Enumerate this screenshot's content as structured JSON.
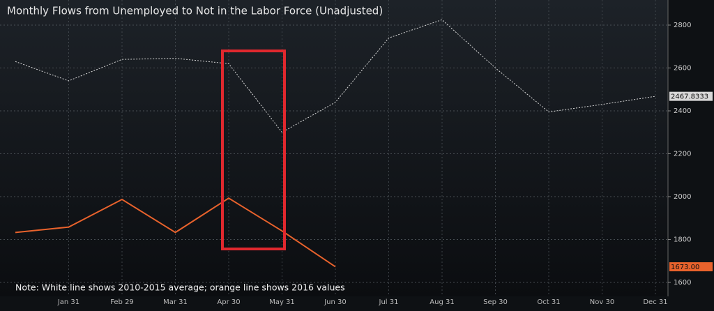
{
  "chart_data": {
    "type": "line",
    "title": "Monthly Flows from Unemployed to Not in the Labor Force (Unadjusted)",
    "annotation": "Note: White line shows 2010-2015 average; orange line shows 2016 values",
    "categories": [
      null,
      "Jan 31",
      "Feb 29",
      "Mar 31",
      "Apr 30",
      "May 31",
      "Jun 30",
      "Jul 31",
      "Aug 31",
      "Sep 30",
      "Oct 31",
      "Nov 30",
      "Dec 31"
    ],
    "series": [
      {
        "color": "#d8d8d8",
        "dashed": true,
        "values": [
          2630,
          2540,
          2640,
          2645,
          2620,
          2300,
          2440,
          2740,
          2825,
          2600,
          2395,
          2430,
          2467.8333
        ],
        "value_labels": [
          null,
          null,
          null,
          null,
          null,
          null,
          null,
          null,
          null,
          null,
          null,
          null,
          "2467.8333"
        ]
      },
      {
        "color": "#e8622c",
        "dashed": false,
        "values": [
          1833,
          1858,
          1987,
          1833,
          1993,
          1840,
          1673,
          null,
          null,
          null,
          null,
          null,
          null
        ],
        "value_labels": [
          null,
          null,
          null,
          null,
          null,
          null,
          "1673.00",
          null,
          null,
          null,
          null,
          null,
          null
        ]
      }
    ],
    "ylim": [
      1535,
      2917
    ],
    "yticks": [
      1600,
      1800,
      2000,
      2200,
      2400,
      2600,
      2800
    ],
    "y_axis_side": "right",
    "grid": true
  }
}
